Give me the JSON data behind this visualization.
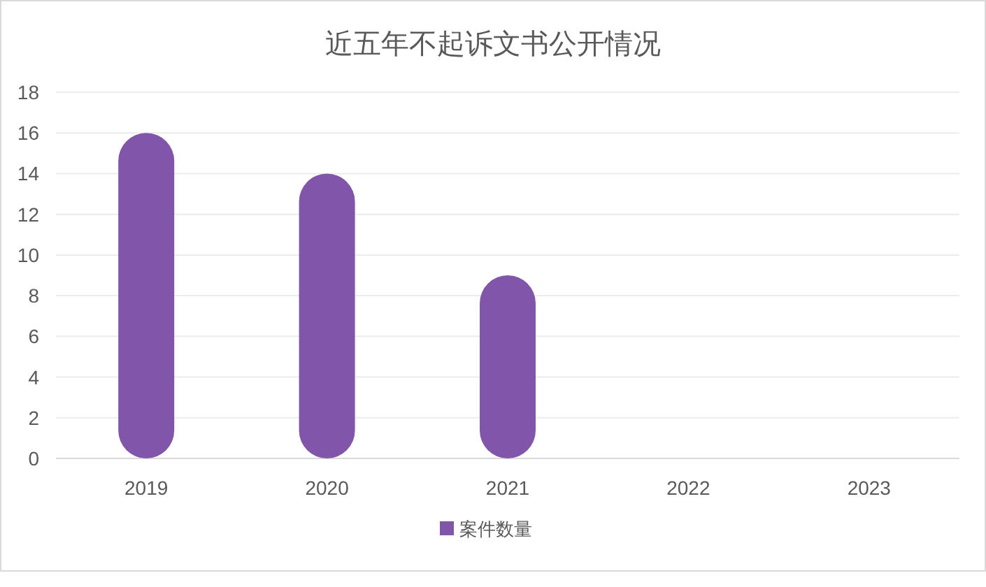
{
  "chart_data": {
    "type": "bar",
    "title": "近五年不起诉文书公开情况",
    "categories": [
      "2019",
      "2020",
      "2021",
      "2022",
      "2023"
    ],
    "series": [
      {
        "name": "案件数量",
        "color": "#8155aa",
        "values": [
          16,
          14,
          9,
          0,
          0
        ]
      }
    ],
    "ylim": [
      0,
      18
    ],
    "yticks": [
      0,
      2,
      4,
      6,
      8,
      10,
      12,
      14,
      16,
      18
    ],
    "grid": "y",
    "legend": "bottom"
  }
}
